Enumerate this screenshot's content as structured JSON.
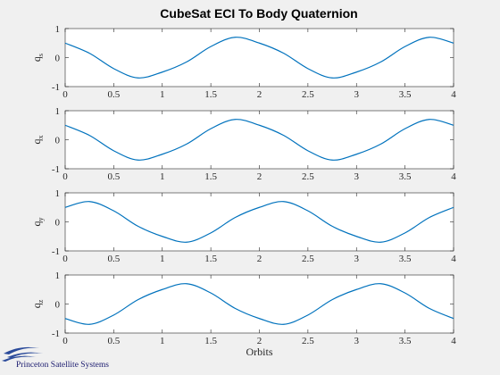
{
  "figure": {
    "title": "CubeSat ECI To Body Quaternion",
    "logo_text": "Princeton Satellite Systems"
  },
  "colors": {
    "background": "#f0f0f0",
    "axes_background": "#ffffff",
    "line": "#0072bd",
    "logo": "#1a1a6e"
  },
  "chart_data": [
    {
      "type": "line",
      "ylabel": "q",
      "ylabel_sub": "s",
      "xlabel": "",
      "xlim": [
        0,
        4
      ],
      "ylim": [
        -1,
        1
      ],
      "xticks": [
        0,
        0.5,
        1,
        1.5,
        2,
        2.5,
        3,
        3.5,
        4
      ],
      "xticklabels": [
        "0",
        "0.5",
        "1",
        "1.5",
        "2",
        "2.5",
        "3",
        "3.5",
        "4"
      ],
      "yticks": [
        -1,
        0,
        1
      ],
      "yticklabels": [
        "-1",
        "0",
        "1"
      ],
      "grid": false,
      "series": [
        {
          "x": [
            0,
            0.25,
            0.5,
            0.75,
            1,
            1.25,
            1.5,
            1.75,
            2,
            2.25,
            2.5,
            2.75,
            3,
            3.25,
            3.5,
            3.75,
            4
          ],
          "y": [
            0.5,
            0.15,
            -0.38,
            -0.7,
            -0.5,
            -0.15,
            0.38,
            0.7,
            0.5,
            0.15,
            -0.38,
            -0.7,
            -0.5,
            -0.15,
            0.38,
            0.7,
            0.5
          ]
        }
      ]
    },
    {
      "type": "line",
      "ylabel": "q",
      "ylabel_sub": "x",
      "xlabel": "",
      "xlim": [
        0,
        4
      ],
      "ylim": [
        -1,
        1
      ],
      "xticks": [
        0,
        0.5,
        1,
        1.5,
        2,
        2.5,
        3,
        3.5,
        4
      ],
      "xticklabels": [
        "0",
        "0.5",
        "1",
        "1.5",
        "2",
        "2.5",
        "3",
        "3.5",
        "4"
      ],
      "yticks": [
        -1,
        0,
        1
      ],
      "yticklabels": [
        "-1",
        "0",
        "1"
      ],
      "grid": false,
      "series": [
        {
          "x": [
            0,
            0.25,
            0.5,
            0.75,
            1,
            1.25,
            1.5,
            1.75,
            2,
            2.25,
            2.5,
            2.75,
            3,
            3.25,
            3.5,
            3.75,
            4
          ],
          "y": [
            0.5,
            0.15,
            -0.38,
            -0.7,
            -0.5,
            -0.15,
            0.38,
            0.7,
            0.5,
            0.15,
            -0.38,
            -0.7,
            -0.5,
            -0.15,
            0.38,
            0.7,
            0.5
          ]
        }
      ]
    },
    {
      "type": "line",
      "ylabel": "q",
      "ylabel_sub": "y",
      "xlabel": "",
      "xlim": [
        0,
        4
      ],
      "ylim": [
        -1,
        1
      ],
      "xticks": [
        0,
        0.5,
        1,
        1.5,
        2,
        2.5,
        3,
        3.5,
        4
      ],
      "xticklabels": [
        "0",
        "0.5",
        "1",
        "1.5",
        "2",
        "2.5",
        "3",
        "3.5",
        "4"
      ],
      "yticks": [
        -1,
        0,
        1
      ],
      "yticklabels": [
        "-1",
        "0",
        "1"
      ],
      "grid": false,
      "series": [
        {
          "x": [
            0,
            0.25,
            0.5,
            0.75,
            1,
            1.25,
            1.5,
            1.75,
            2,
            2.25,
            2.5,
            2.75,
            3,
            3.25,
            3.5,
            3.75,
            4
          ],
          "y": [
            0.5,
            0.7,
            0.38,
            -0.15,
            -0.5,
            -0.7,
            -0.38,
            0.15,
            0.5,
            0.7,
            0.38,
            -0.15,
            -0.5,
            -0.7,
            -0.38,
            0.15,
            0.5
          ]
        }
      ]
    },
    {
      "type": "line",
      "ylabel": "q",
      "ylabel_sub": "z",
      "xlabel": "Orbits",
      "xlim": [
        0,
        4
      ],
      "ylim": [
        -1,
        1
      ],
      "xticks": [
        0,
        0.5,
        1,
        1.5,
        2,
        2.5,
        3,
        3.5,
        4
      ],
      "xticklabels": [
        "0",
        "0.5",
        "1",
        "1.5",
        "2",
        "2.5",
        "3",
        "3.5",
        "4"
      ],
      "yticks": [
        -1,
        0,
        1
      ],
      "yticklabels": [
        "-1",
        "0",
        "1"
      ],
      "grid": false,
      "series": [
        {
          "x": [
            0,
            0.25,
            0.5,
            0.75,
            1,
            1.25,
            1.5,
            1.75,
            2,
            2.25,
            2.5,
            2.75,
            3,
            3.25,
            3.5,
            3.75,
            4
          ],
          "y": [
            -0.5,
            -0.7,
            -0.38,
            0.15,
            0.5,
            0.7,
            0.38,
            -0.15,
            -0.5,
            -0.7,
            -0.38,
            0.15,
            0.5,
            0.7,
            0.38,
            -0.15,
            -0.5
          ]
        }
      ]
    }
  ]
}
